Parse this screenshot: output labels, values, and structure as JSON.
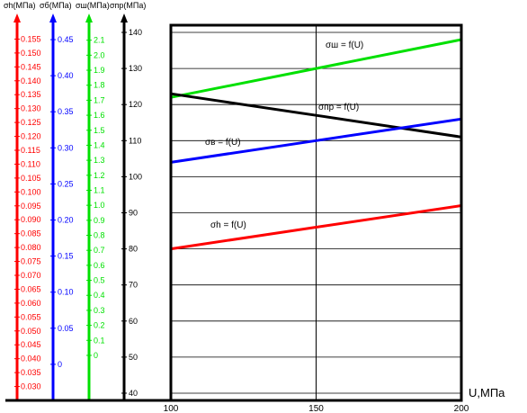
{
  "chart_data": {
    "type": "line",
    "x": [
      100,
      150,
      200
    ],
    "xlim": [
      100,
      200
    ],
    "xticks": [
      "100",
      "150",
      "200"
    ],
    "xlabel": "U,МПа",
    "grid": true,
    "series": [
      {
        "name": "σш = f(U)",
        "axis": "σш",
        "color": "#00e000",
        "values": [
          122,
          130,
          138
        ]
      },
      {
        "name": "σпр = f(U)",
        "axis": "σпр",
        "color": "#000000",
        "values": [
          123,
          117,
          111
        ]
      },
      {
        "name": "σв = f(U)",
        "axis": "σв",
        "color": "#0000ff",
        "values": [
          104,
          110,
          116
        ]
      },
      {
        "name": "σh = f(U)",
        "axis": "σh",
        "color": "#ff0000",
        "values": [
          80,
          86,
          92
        ]
      }
    ],
    "axes": [
      {
        "key": "h",
        "title": "σh(МПа)",
        "color": "#ff0000",
        "ylim": [
          0.025,
          0.16
        ],
        "ticks": [
          "0.030",
          "0.035",
          "0.040",
          "0.045",
          "0.050",
          "0.055",
          "0.060",
          "0.065",
          "0.070",
          "0.075",
          "0.080",
          "0.085",
          "0.090",
          "0.095",
          "0.100",
          "0.105",
          "0.110",
          "0.115",
          "0.120",
          "0.125",
          "0.130",
          "0.135",
          "0.140",
          "0.145",
          "0.150",
          "0.155"
        ]
      },
      {
        "key": "b",
        "title": "σб(МПа)",
        "color": "#0000ff",
        "ylim": [
          -0.05,
          0.47
        ],
        "ticks": [
          "0",
          "0.05",
          "0.10",
          "0.15",
          "0.20",
          "0.25",
          "0.30",
          "0.35",
          "0.40",
          "0.45"
        ]
      },
      {
        "key": "sh",
        "title": "σш(МПа)",
        "color": "#00e000",
        "ylim": [
          -0.3,
          2.2
        ],
        "ticks": [
          "0",
          "0.1",
          "0.2",
          "0.3",
          "0.4",
          "0.5",
          "0.6",
          "0.7",
          "0.8",
          "0.9",
          "1.0",
          "1.1",
          "1.2",
          "1.3",
          "1.4",
          "1.5",
          "1.6",
          "1.7",
          "1.8",
          "1.9",
          "2.0",
          "2.1"
        ]
      },
      {
        "key": "pr",
        "title": "σпр(МПа)",
        "color": "#000000",
        "ylim": [
          38,
          142
        ],
        "ticks": [
          "40",
          "50",
          "60",
          "70",
          "80",
          "90",
          "100",
          "110",
          "120",
          "130",
          "140"
        ]
      }
    ]
  }
}
